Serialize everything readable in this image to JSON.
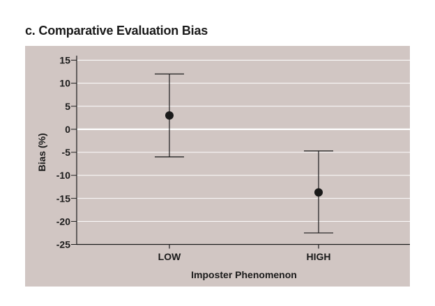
{
  "chart_data": {
    "type": "scatter",
    "title": "c. Comparative Evaluation Bias",
    "xlabel": "Imposter Phenomenon",
    "ylabel": "Bias (%)",
    "categories": [
      "LOW",
      "HIGH"
    ],
    "ylim": [
      -25,
      15
    ],
    "yticks": [
      15,
      10,
      5,
      0,
      -5,
      -10,
      -15,
      -20,
      -25
    ],
    "grid": true,
    "series": [
      {
        "values": [
          3,
          -13.7
        ],
        "error_lower": [
          -6,
          -22.5
        ],
        "error_upper": [
          12,
          -4.7
        ]
      }
    ],
    "colors": {
      "panel_background": "#d1c6c3",
      "gridline": "#ffffff",
      "marker": "#1a1a1a",
      "text": "#1a1a1a"
    }
  }
}
